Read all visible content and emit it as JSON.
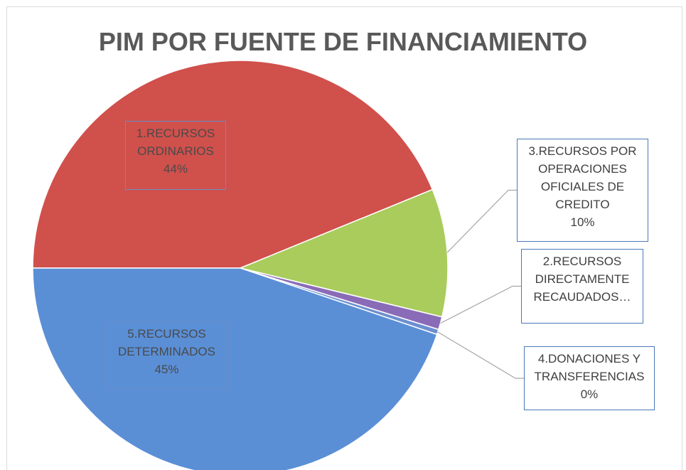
{
  "chart_data": {
    "type": "pie",
    "title": "PIM POR FUENTE DE FINANCIAMIENTO",
    "categories": [
      "1.RECURSOS ORDINARIOS",
      "3.RECURSOS POR OPERACIONES OFICIALES DE CREDITO",
      "2.RECURSOS DIRECTAMENTE RECAUDADOS…",
      "4.DONACIONES Y TRANSFERENCIAS",
      "5.RECURSOS DETERMINADOS"
    ],
    "values": [
      44,
      10,
      1,
      0.4,
      45
    ],
    "value_labels": [
      "44%",
      "10%",
      null,
      "0%",
      "45%"
    ],
    "colors": [
      "#d0504c",
      "#a9cc5c",
      "#8a6bb8",
      "#6c8fd0",
      "#5a8fd6"
    ]
  }
}
